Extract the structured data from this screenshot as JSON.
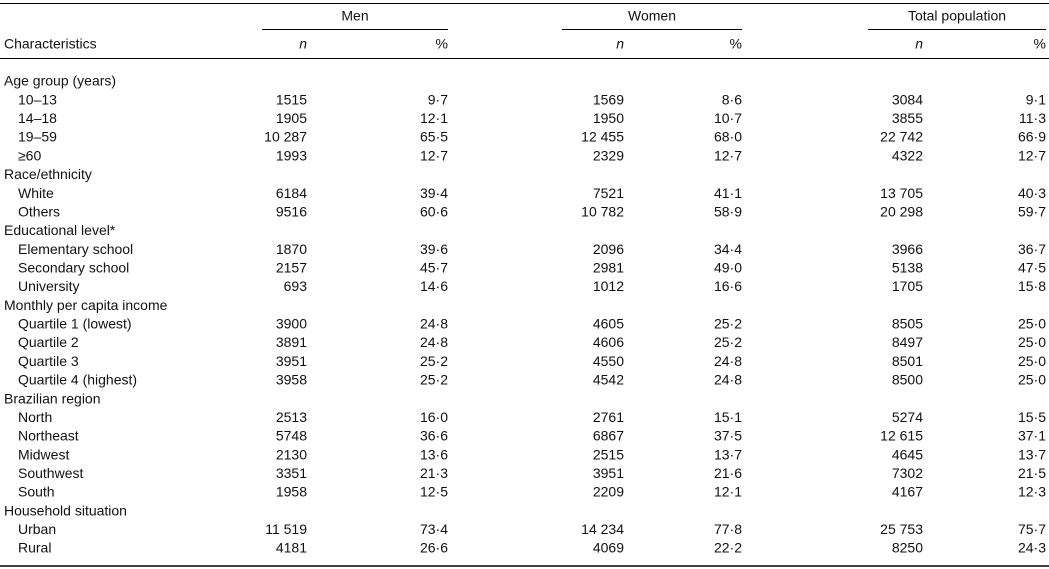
{
  "table": {
    "groups": [
      "Men",
      "Women",
      "Total population"
    ],
    "columns": [
      "Characteristics",
      "n",
      "%",
      "n",
      "%",
      "n",
      "%"
    ],
    "sections": [
      {
        "label": "Age group (years)",
        "rows": [
          [
            "10–13",
            "1515",
            "9·7",
            "1569",
            "8·6",
            "3084",
            "9·1"
          ],
          [
            "14–18",
            "1905",
            "12·1",
            "1950",
            "10·7",
            "3855",
            "11·3"
          ],
          [
            "19–59",
            "10 287",
            "65·5",
            "12 455",
            "68·0",
            "22 742",
            "66·9"
          ],
          [
            "≥60",
            "1993",
            "12·7",
            "2329",
            "12·7",
            "4322",
            "12·7"
          ]
        ]
      },
      {
        "label": "Race/ethnicity",
        "rows": [
          [
            "White",
            "6184",
            "39·4",
            "7521",
            "41·1",
            "13 705",
            "40·3"
          ],
          [
            "Others",
            "9516",
            "60·6",
            "10 782",
            "58·9",
            "20 298",
            "59·7"
          ]
        ]
      },
      {
        "label": "Educational level*",
        "rows": [
          [
            "Elementary school",
            "1870",
            "39·6",
            "2096",
            "34·4",
            "3966",
            "36·7"
          ],
          [
            "Secondary school",
            "2157",
            "45·7",
            "2981",
            "49·0",
            "5138",
            "47·5"
          ],
          [
            "University",
            "693",
            "14·6",
            "1012",
            "16·6",
            "1705",
            "15·8"
          ]
        ]
      },
      {
        "label": "Monthly per capita income",
        "rows": [
          [
            "Quartile 1 (lowest)",
            "3900",
            "24·8",
            "4605",
            "25·2",
            "8505",
            "25·0"
          ],
          [
            "Quartile 2",
            "3891",
            "24·8",
            "4606",
            "25·2",
            "8497",
            "25·0"
          ],
          [
            "Quartile 3",
            "3951",
            "25·2",
            "4550",
            "24·8",
            "8501",
            "25·0"
          ],
          [
            "Quartile 4 (highest)",
            "3958",
            "25·2",
            "4542",
            "24·8",
            "8500",
            "25·0"
          ]
        ]
      },
      {
        "label": "Brazilian region",
        "rows": [
          [
            "North",
            "2513",
            "16·0",
            "2761",
            "15·1",
            "5274",
            "15·5"
          ],
          [
            "Northeast",
            "5748",
            "36·6",
            "6867",
            "37·5",
            "12 615",
            "37·1"
          ],
          [
            "Midwest",
            "2130",
            "13·6",
            "2515",
            "13·7",
            "4645",
            "13·7"
          ],
          [
            "Southwest",
            "3351",
            "21·3",
            "3951",
            "21·6",
            "7302",
            "21·5"
          ],
          [
            "South",
            "1958",
            "12·5",
            "2209",
            "12·1",
            "4167",
            "12·3"
          ]
        ]
      },
      {
        "label": "Household situation",
        "rows": [
          [
            "Urban",
            "11 519",
            "73·4",
            "14 234",
            "77·8",
            "25 753",
            "75·7"
          ],
          [
            "Rural",
            "4181",
            "26·6",
            "4069",
            "22·2",
            "8250",
            "24·3"
          ]
        ]
      }
    ]
  }
}
